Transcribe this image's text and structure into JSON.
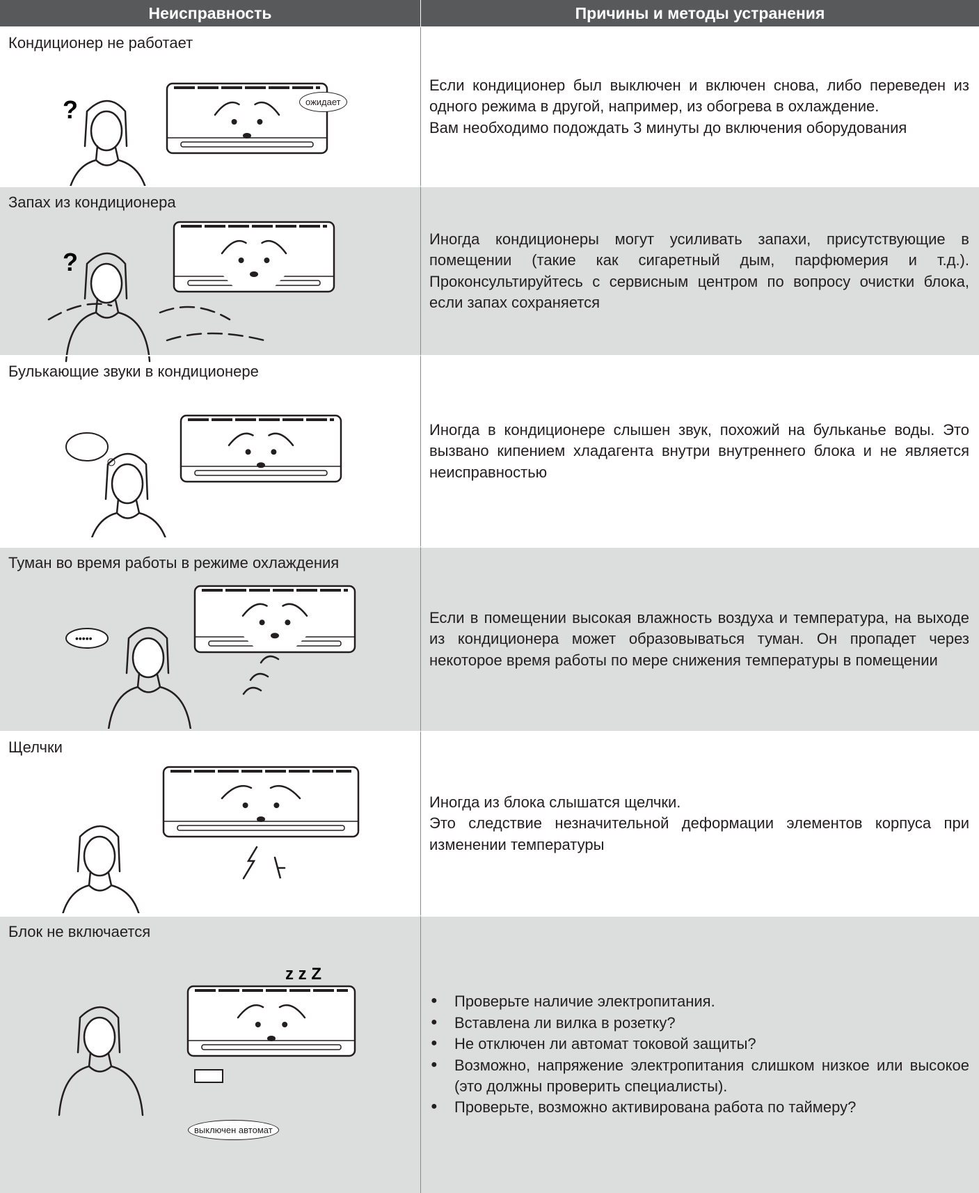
{
  "header": {
    "columns": [
      "Неисправность",
      "Причины и методы устранения"
    ]
  },
  "rows": [
    {
      "problem": "Кондиционер не работает",
      "solution": [
        "Если кондиционер был выключен и включен снова, либо переведен из одного режима в другой, например, из обогрева в охлаждение.",
        "Вам необходимо подождать 3 минуты до включения оборудования"
      ],
      "tag": "ожидает"
    },
    {
      "problem": "Запах из кондиционера",
      "solution": [
        "Иногда кондиционеры могут усиливать запахи, присутствующие в помещении (такие как сигаретный дым, парфюмерия и т.д.). Проконсультируйтесь с сервисным центром по вопросу очистки блока, если запах сохраняется"
      ]
    },
    {
      "problem": "Булькающие звуки в кондиционере",
      "solution": [
        "Иногда в кондиционере слышен звук, похожий на бульканье воды. Это вызвано кипением хладагента внутри внутреннего блока и не является неисправностью"
      ]
    },
    {
      "problem": "Туман во время работы в режиме охлаждения",
      "solution": [
        "Если в помещении высокая влажность воздуха и температура, на выходе из кондиционера может образовываться туман. Он пропадет через некоторое время работы по мере снижения температуры в помещении"
      ]
    },
    {
      "problem": "Щелчки",
      "solution": [
        "Иногда из блока слышатся щелчки.",
        "Это следствие незначительной деформации элементов корпуса при изменении температуры"
      ]
    },
    {
      "problem": "Блок не включается",
      "bullets": [
        "Проверьте наличие электропитания.",
        "Вставлена ли вилка в розетку?",
        "Не отключен ли автомат токовой защиты?",
        "Возможно, напряжение электропитания слишком низкое или высокое (это должны проверить специалисты).",
        "Проверьте, возможно активирована работа по таймеру?"
      ],
      "tag": "выключен автомат"
    }
  ]
}
